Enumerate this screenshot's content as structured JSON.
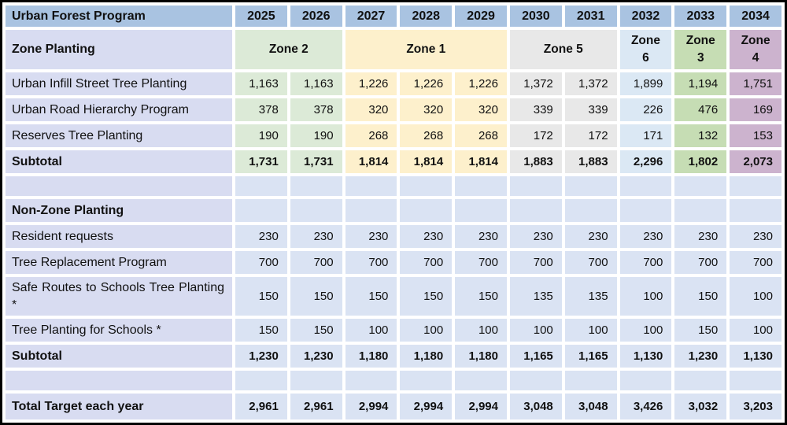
{
  "colors": {
    "header_blue": "#a9c3e1",
    "label_lavender": "#d8dcf1",
    "plain_data": "#dae3f3",
    "zone2": "#dcead7",
    "zone1": "#fdf0cc",
    "zone5": "#e8e8e8",
    "zone6": "#dbe8f4",
    "zone3": "#c6ddb4",
    "zone4": "#ccb3ce",
    "border_black": "#000000",
    "grid_white": "#ffffff"
  },
  "table": {
    "header": {
      "label": "Urban Forest Program",
      "years": [
        "2025",
        "2026",
        "2027",
        "2028",
        "2029",
        "2030",
        "2031",
        "2032",
        "2033",
        "2034"
      ]
    },
    "zone_row": {
      "label": "Zone Planting",
      "zones": [
        {
          "label": "Zone 2",
          "span": 2,
          "color": "zone2"
        },
        {
          "label": "Zone 1",
          "span": 3,
          "color": "zone1"
        },
        {
          "label": "Zone 5",
          "span": 2,
          "color": "zone5"
        },
        {
          "label": "Zone 6",
          "span": 1,
          "color": "zone6"
        },
        {
          "label": "Zone 3",
          "span": 1,
          "color": "zone3"
        },
        {
          "label": "Zone 4",
          "span": 1,
          "color": "zone4"
        }
      ]
    },
    "column_colors": [
      "zone2",
      "zone2",
      "zone1",
      "zone1",
      "zone1",
      "zone5",
      "zone5",
      "zone6",
      "zone3",
      "zone4"
    ],
    "rows": [
      {
        "label": "Urban Infill Street Tree Planting",
        "values": [
          "1,163",
          "1,163",
          "1,226",
          "1,226",
          "1,226",
          "1,372",
          "1,372",
          "1,899",
          "1,194",
          "1,751"
        ],
        "bold": false,
        "zone_colored": true,
        "height": "h-std"
      },
      {
        "label": "Urban Road Hierarchy Program",
        "values": [
          "378",
          "378",
          "320",
          "320",
          "320",
          "339",
          "339",
          "226",
          "476",
          "169"
        ],
        "bold": false,
        "zone_colored": true,
        "height": "h-std"
      },
      {
        "label": "Reserves Tree Planting",
        "values": [
          "190",
          "190",
          "268",
          "268",
          "268",
          "172",
          "172",
          "171",
          "132",
          "153"
        ],
        "bold": false,
        "zone_colored": true,
        "height": "h-std"
      },
      {
        "label": "Subtotal",
        "values": [
          "1,731",
          "1,731",
          "1,814",
          "1,814",
          "1,814",
          "1,883",
          "1,883",
          "2,296",
          "1,802",
          "2,073"
        ],
        "bold": true,
        "zone_colored": true,
        "height": "h-std"
      },
      {
        "label": "",
        "values": [
          "",
          "",
          "",
          "",
          "",
          "",
          "",
          "",
          "",
          ""
        ],
        "bold": false,
        "zone_colored": false,
        "height": "h-spacer",
        "spacer": true
      },
      {
        "label": "Non-Zone Planting",
        "values": [
          "",
          "",
          "",
          "",
          "",
          "",
          "",
          "",
          "",
          ""
        ],
        "bold": true,
        "zone_colored": false,
        "height": "h-std"
      },
      {
        "label": "Resident requests",
        "values": [
          "230",
          "230",
          "230",
          "230",
          "230",
          "230",
          "230",
          "230",
          "230",
          "230"
        ],
        "bold": false,
        "zone_colored": false,
        "height": "h-std"
      },
      {
        "label": "Tree Replacement Program",
        "values": [
          "700",
          "700",
          "700",
          "700",
          "700",
          "700",
          "700",
          "700",
          "700",
          "700"
        ],
        "bold": false,
        "zone_colored": false,
        "height": "h-std"
      },
      {
        "label": "Safe Routes to Schools Tree Planting *",
        "values": [
          "150",
          "150",
          "150",
          "150",
          "150",
          "135",
          "135",
          "100",
          "150",
          "100"
        ],
        "bold": false,
        "zone_colored": false,
        "height": "h-tall"
      },
      {
        "label": "Tree Planting for Schools *",
        "values": [
          "150",
          "150",
          "100",
          "100",
          "100",
          "100",
          "100",
          "100",
          "150",
          "100"
        ],
        "bold": false,
        "zone_colored": false,
        "height": "h-std"
      },
      {
        "label": "Subtotal",
        "values": [
          "1,230",
          "1,230",
          "1,180",
          "1,180",
          "1,180",
          "1,165",
          "1,165",
          "1,130",
          "1,230",
          "1,130"
        ],
        "bold": true,
        "zone_colored": false,
        "height": "h-std"
      },
      {
        "label": "",
        "values": [
          "",
          "",
          "",
          "",
          "",
          "",
          "",
          "",
          "",
          ""
        ],
        "bold": false,
        "zone_colored": false,
        "height": "h-spacer",
        "spacer": true
      },
      {
        "label": "Total Target each year",
        "values": [
          "2,961",
          "2,961",
          "2,994",
          "2,994",
          "2,994",
          "3,048",
          "3,048",
          "3,426",
          "3,032",
          "3,203"
        ],
        "bold": true,
        "zone_colored": false,
        "height": "h-total"
      }
    ]
  }
}
